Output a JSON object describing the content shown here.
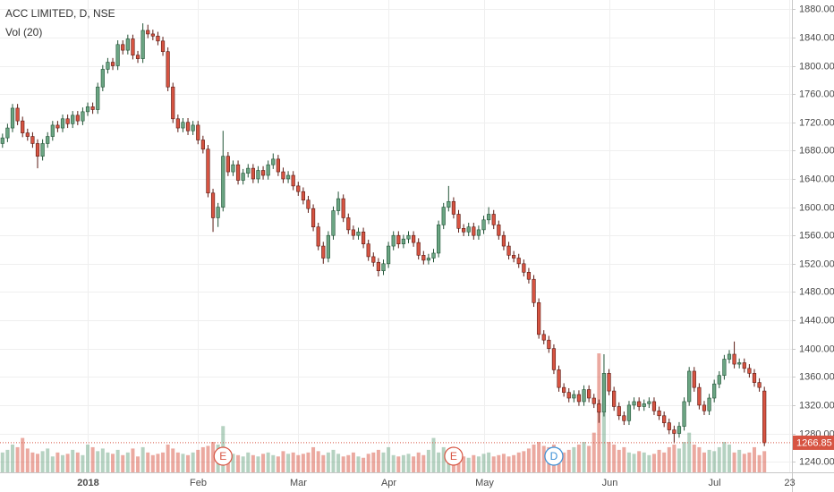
{
  "chart_data": {
    "type": "candlestick",
    "title": "ACC LIMITED, D, NSE",
    "volume_label": "Vol (20)",
    "up_color": "#6ba583",
    "down_color": "#d75442",
    "grid": true,
    "xlim": [
      -0.5,
      157.5
    ],
    "ylim": [
      1225,
      1893
    ],
    "xticks": [
      {
        "value": 17,
        "label": "2018"
      },
      {
        "value": 39,
        "label": "Feb"
      },
      {
        "value": 59,
        "label": "Mar"
      },
      {
        "value": 77,
        "label": "Apr"
      },
      {
        "value": 96,
        "label": "May"
      },
      {
        "value": 121,
        "label": "Jun"
      },
      {
        "value": 142,
        "label": "Jul"
      },
      {
        "value": 157,
        "label": "23"
      }
    ],
    "yticks": [
      {
        "value": 1240,
        "label": "1240.00"
      },
      {
        "value": 1280,
        "label": "1280.00"
      },
      {
        "value": 1320,
        "label": "1320.00"
      },
      {
        "value": 1360,
        "label": "1360.00"
      },
      {
        "value": 1400,
        "label": "1400.00"
      },
      {
        "value": 1440,
        "label": "1440.00"
      },
      {
        "value": 1480,
        "label": "1480.00"
      },
      {
        "value": 1520,
        "label": "1520.00"
      },
      {
        "value": 1560,
        "label": "1560.00"
      },
      {
        "value": 1600,
        "label": "1600.00"
      },
      {
        "value": 1640,
        "label": "1640.00"
      },
      {
        "value": 1680,
        "label": "1680.00"
      },
      {
        "value": 1720,
        "label": "1720.00"
      },
      {
        "value": 1760,
        "label": "1760.00"
      },
      {
        "value": 1800,
        "label": "1800.00"
      },
      {
        "value": 1840,
        "label": "1840.00"
      },
      {
        "value": 1880,
        "label": "1880.00"
      }
    ],
    "last_price": 1266.85,
    "events": [
      {
        "label": "E",
        "index": 44
      },
      {
        "label": "E",
        "index": 90
      },
      {
        "label": "D",
        "index": 110
      }
    ],
    "open": [
      1690,
      1698,
      1712,
      1740,
      1722,
      1705,
      1700,
      1690,
      1672,
      1690,
      1700,
      1716,
      1712,
      1725,
      1718,
      1730,
      1722,
      1735,
      1742,
      1738,
      1770,
      1795,
      1805,
      1800,
      1830,
      1822,
      1838,
      1815,
      1810,
      1850,
      1845,
      1842,
      1835,
      1820,
      1770,
      1725,
      1712,
      1720,
      1708,
      1716,
      1695,
      1682,
      1620,
      1585,
      1600,
      1672,
      1650,
      1660,
      1638,
      1648,
      1655,
      1640,
      1652,
      1645,
      1660,
      1668,
      1650,
      1640,
      1645,
      1630,
      1622,
      1610,
      1598,
      1572,
      1545,
      1528,
      1560,
      1595,
      1612,
      1585,
      1568,
      1560,
      1565,
      1548,
      1530,
      1522,
      1510,
      1520,
      1545,
      1560,
      1548,
      1555,
      1560,
      1550,
      1532,
      1525,
      1528,
      1535,
      1575,
      1600,
      1608,
      1590,
      1570,
      1565,
      1572,
      1560,
      1568,
      1582,
      1590,
      1575,
      1560,
      1545,
      1532,
      1528,
      1520,
      1508,
      1498,
      1465,
      1420,
      1412,
      1400,
      1370,
      1345,
      1338,
      1330,
      1335,
      1325,
      1342,
      1330,
      1322,
      1310,
      1365,
      1340,
      1318,
      1305,
      1298,
      1320,
      1325,
      1318,
      1322,
      1325,
      1312,
      1305,
      1295,
      1285,
      1280,
      1290,
      1325,
      1368,
      1345,
      1320,
      1312,
      1330,
      1350,
      1362,
      1385,
      1392,
      1378,
      1380,
      1372,
      1365,
      1352,
      1340
    ],
    "high": [
      1704,
      1718,
      1746,
      1746,
      1728,
      1711,
      1706,
      1696,
      1696,
      1706,
      1722,
      1722,
      1731,
      1731,
      1736,
      1736,
      1741,
      1748,
      1748,
      1776,
      1801,
      1811,
      1811,
      1836,
      1836,
      1844,
      1844,
      1821,
      1860,
      1858,
      1851,
      1848,
      1841,
      1826,
      1776,
      1731,
      1726,
      1726,
      1722,
      1722,
      1701,
      1688,
      1626,
      1606,
      1708,
      1678,
      1666,
      1666,
      1654,
      1661,
      1661,
      1658,
      1658,
      1666,
      1676,
      1674,
      1656,
      1651,
      1651,
      1636,
      1628,
      1616,
      1604,
      1578,
      1551,
      1566,
      1601,
      1622,
      1618,
      1591,
      1574,
      1571,
      1571,
      1554,
      1536,
      1528,
      1526,
      1551,
      1566,
      1566,
      1561,
      1566,
      1566,
      1556,
      1538,
      1534,
      1541,
      1581,
      1606,
      1630,
      1614,
      1596,
      1576,
      1578,
      1578,
      1574,
      1588,
      1600,
      1596,
      1581,
      1566,
      1551,
      1538,
      1534,
      1526,
      1514,
      1504,
      1471,
      1426,
      1418,
      1406,
      1376,
      1351,
      1344,
      1341,
      1341,
      1348,
      1348,
      1336,
      1328,
      1392,
      1371,
      1346,
      1324,
      1311,
      1326,
      1331,
      1331,
      1328,
      1331,
      1331,
      1318,
      1311,
      1301,
      1291,
      1296,
      1331,
      1374,
      1374,
      1351,
      1326,
      1336,
      1356,
      1368,
      1391,
      1398,
      1410,
      1386,
      1386,
      1378,
      1371,
      1358,
      1346
    ],
    "low": [
      1684,
      1692,
      1706,
      1716,
      1699,
      1694,
      1684,
      1655,
      1666,
      1684,
      1694,
      1706,
      1706,
      1712,
      1712,
      1716,
      1716,
      1729,
      1732,
      1732,
      1764,
      1789,
      1794,
      1794,
      1816,
      1816,
      1809,
      1804,
      1804,
      1839,
      1836,
      1829,
      1814,
      1764,
      1719,
      1706,
      1706,
      1702,
      1702,
      1689,
      1676,
      1614,
      1565,
      1572,
      1594,
      1644,
      1644,
      1632,
      1632,
      1642,
      1634,
      1634,
      1639,
      1639,
      1654,
      1644,
      1634,
      1634,
      1624,
      1616,
      1604,
      1592,
      1566,
      1539,
      1520,
      1522,
      1554,
      1589,
      1579,
      1562,
      1554,
      1554,
      1542,
      1524,
      1516,
      1502,
      1504,
      1514,
      1539,
      1542,
      1542,
      1549,
      1544,
      1526,
      1519,
      1519,
      1522,
      1529,
      1569,
      1594,
      1584,
      1564,
      1559,
      1559,
      1554,
      1554,
      1562,
      1576,
      1569,
      1554,
      1539,
      1526,
      1522,
      1514,
      1502,
      1492,
      1459,
      1414,
      1406,
      1394,
      1364,
      1339,
      1332,
      1324,
      1324,
      1319,
      1319,
      1324,
      1316,
      1295,
      1304,
      1334,
      1312,
      1299,
      1292,
      1292,
      1314,
      1312,
      1312,
      1316,
      1306,
      1299,
      1289,
      1279,
      1266,
      1274,
      1284,
      1319,
      1339,
      1314,
      1306,
      1306,
      1324,
      1344,
      1356,
      1379,
      1372,
      1372,
      1366,
      1359,
      1346,
      1339,
      1262
    ],
    "close": [
      1698,
      1712,
      1740,
      1722,
      1705,
      1700,
      1690,
      1672,
      1690,
      1700,
      1716,
      1712,
      1725,
      1718,
      1730,
      1722,
      1735,
      1742,
      1738,
      1770,
      1795,
      1805,
      1800,
      1830,
      1822,
      1838,
      1815,
      1810,
      1850,
      1845,
      1842,
      1835,
      1820,
      1770,
      1725,
      1712,
      1720,
      1708,
      1716,
      1695,
      1682,
      1620,
      1585,
      1600,
      1672,
      1650,
      1660,
      1638,
      1648,
      1655,
      1640,
      1652,
      1645,
      1660,
      1668,
      1650,
      1640,
      1645,
      1630,
      1622,
      1610,
      1598,
      1572,
      1545,
      1528,
      1560,
      1595,
      1612,
      1585,
      1568,
      1560,
      1565,
      1548,
      1530,
      1522,
      1510,
      1520,
      1545,
      1560,
      1548,
      1555,
      1560,
      1550,
      1532,
      1525,
      1528,
      1535,
      1575,
      1600,
      1608,
      1590,
      1570,
      1565,
      1572,
      1560,
      1568,
      1582,
      1590,
      1575,
      1560,
      1545,
      1532,
      1528,
      1520,
      1508,
      1498,
      1465,
      1420,
      1412,
      1400,
      1370,
      1345,
      1338,
      1330,
      1335,
      1325,
      1342,
      1330,
      1322,
      1310,
      1365,
      1340,
      1318,
      1305,
      1298,
      1320,
      1325,
      1318,
      1322,
      1325,
      1312,
      1305,
      1295,
      1285,
      1280,
      1290,
      1325,
      1368,
      1345,
      1320,
      1312,
      1330,
      1350,
      1362,
      1385,
      1392,
      1378,
      1380,
      1372,
      1365,
      1352,
      1345,
      1266.85
    ],
    "volume": [
      300,
      340,
      420,
      380,
      520,
      360,
      300,
      280,
      320,
      360,
      240,
      300,
      260,
      280,
      340,
      300,
      260,
      420,
      380,
      320,
      360,
      300,
      280,
      340,
      260,
      300,
      360,
      240,
      380,
      300,
      260,
      280,
      300,
      420,
      360,
      300,
      280,
      260,
      300,
      340,
      380,
      400,
      460,
      420,
      700,
      300,
      280,
      260,
      240,
      300,
      260,
      240,
      280,
      300,
      260,
      240,
      320,
      280,
      300,
      260,
      280,
      300,
      380,
      320,
      260,
      300,
      340,
      280,
      240,
      260,
      300,
      240,
      220,
      280,
      300,
      340,
      300,
      380,
      260,
      240,
      260,
      280,
      240,
      300,
      260,
      340,
      520,
      300,
      380,
      280,
      300,
      260,
      240,
      220,
      260,
      240,
      280,
      300,
      240,
      260,
      280,
      240,
      260,
      300,
      320,
      360,
      420,
      460,
      400,
      380,
      420,
      360,
      300,
      340,
      380,
      420,
      460,
      400,
      600,
      1800,
      900,
      460,
      420,
      340,
      380,
      300,
      280,
      320,
      300,
      260,
      280,
      340,
      300,
      380,
      420,
      360,
      460,
      600,
      420,
      380,
      300,
      340,
      320,
      380,
      460,
      420,
      300,
      340,
      280,
      300,
      380,
      260,
      320
    ]
  }
}
